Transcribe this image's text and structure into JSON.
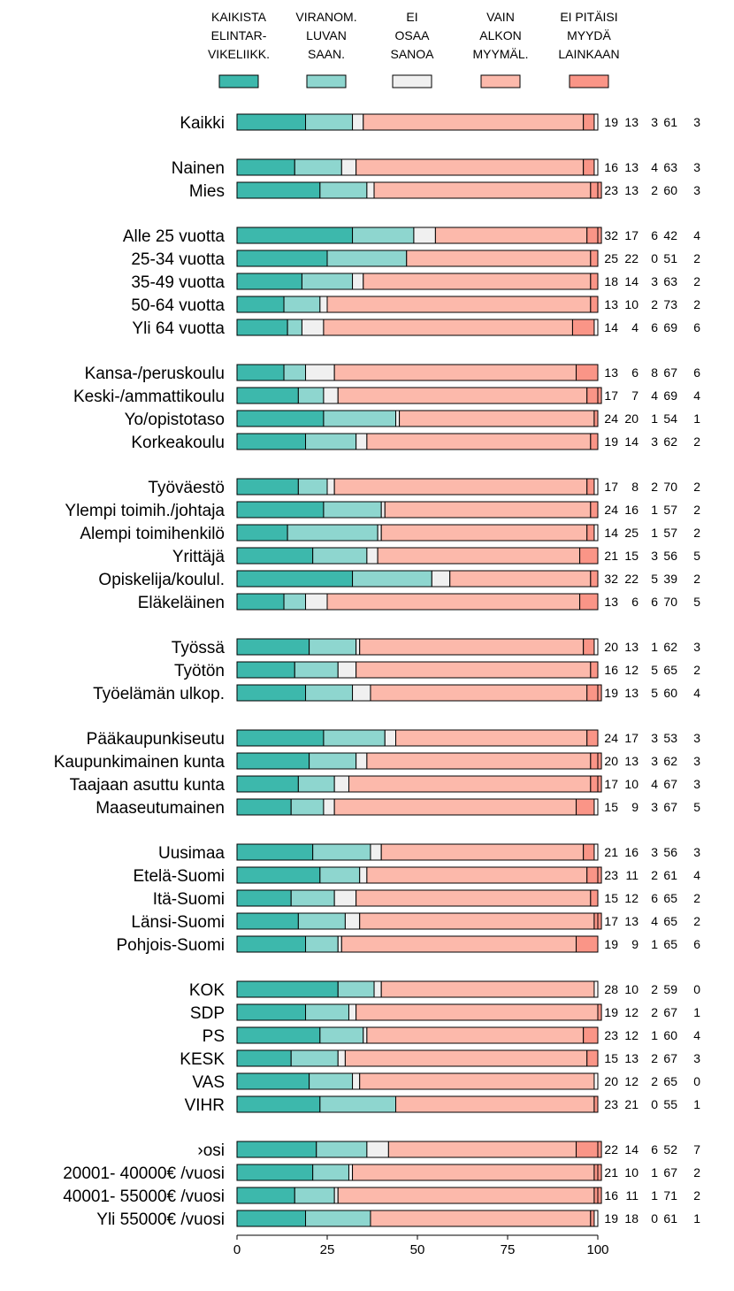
{
  "chart_data": {
    "type": "bar",
    "orientation": "horizontal",
    "stacked": true,
    "xlim": [
      0,
      100
    ],
    "x_ticks": [
      "0",
      "25",
      "50",
      "75",
      "100"
    ],
    "grid": false,
    "legend_position": "top",
    "series": [
      {
        "name_lines": [
          "KAIKISTA",
          "ELINTAR-",
          "VIKELIIKK."
        ],
        "color": "#3db8ac"
      },
      {
        "name_lines": [
          "VIRANOM.",
          "LUVAN",
          "SAAN."
        ],
        "color": "#8ed6cf"
      },
      {
        "name_lines": [
          "EI",
          "OSAA",
          "SANOA"
        ],
        "color": "#f0f0f0"
      },
      {
        "name_lines": [
          "VAIN",
          "ALKON",
          "MYYMÄL."
        ],
        "color": "#fcb9ab"
      },
      {
        "name_lines": [
          "EI PITÄISI",
          "MYYDÄ",
          "LAINKAAN"
        ],
        "color": "#fa9587"
      }
    ],
    "groups": [
      [
        {
          "label": "Kaikki",
          "values": [
            19,
            13,
            3,
            61,
            3
          ]
        }
      ],
      [
        {
          "label": "Nainen",
          "values": [
            16,
            13,
            4,
            63,
            3
          ]
        },
        {
          "label": "Mies",
          "values": [
            23,
            13,
            2,
            60,
            3
          ]
        }
      ],
      [
        {
          "label": "Alle 25 vuotta",
          "values": [
            32,
            17,
            6,
            42,
            4
          ]
        },
        {
          "label": "25-34 vuotta",
          "values": [
            25,
            22,
            0,
            51,
            2
          ]
        },
        {
          "label": "35-49 vuotta",
          "values": [
            18,
            14,
            3,
            63,
            2
          ]
        },
        {
          "label": "50-64 vuotta",
          "values": [
            13,
            10,
            2,
            73,
            2
          ]
        },
        {
          "label": "Yli 64 vuotta",
          "values": [
            14,
            4,
            6,
            69,
            6
          ]
        }
      ],
      [
        {
          "label": "Kansa-/peruskoulu",
          "values": [
            13,
            6,
            8,
            67,
            6
          ]
        },
        {
          "label": "Keski-/ammattikoulu",
          "values": [
            17,
            7,
            4,
            69,
            4
          ]
        },
        {
          "label": "Yo/opistotaso",
          "values": [
            24,
            20,
            1,
            54,
            1
          ]
        },
        {
          "label": "Korkeakoulu",
          "values": [
            19,
            14,
            3,
            62,
            2
          ]
        }
      ],
      [
        {
          "label": "Työväestö",
          "values": [
            17,
            8,
            2,
            70,
            2
          ]
        },
        {
          "label": "Ylempi toimih./johtaja",
          "values": [
            24,
            16,
            1,
            57,
            2
          ]
        },
        {
          "label": "Alempi toimihenkilö",
          "values": [
            14,
            25,
            1,
            57,
            2
          ]
        },
        {
          "label": "Yrittäjä",
          "values": [
            21,
            15,
            3,
            56,
            5
          ]
        },
        {
          "label": "Opiskelija/koulul.",
          "values": [
            32,
            22,
            5,
            39,
            2
          ]
        },
        {
          "label": "Eläkeläinen",
          "values": [
            13,
            6,
            6,
            70,
            5
          ]
        }
      ],
      [
        {
          "label": "Työssä",
          "values": [
            20,
            13,
            1,
            62,
            3
          ]
        },
        {
          "label": "Työtön",
          "values": [
            16,
            12,
            5,
            65,
            2
          ]
        },
        {
          "label": "Työelämän ulkop.",
          "values": [
            19,
            13,
            5,
            60,
            4
          ]
        }
      ],
      [
        {
          "label": "Pääkaupunkiseutu",
          "values": [
            24,
            17,
            3,
            53,
            3
          ]
        },
        {
          "label": "Kaupunkimainen kunta",
          "values": [
            20,
            13,
            3,
            62,
            3
          ]
        },
        {
          "label": "Taajaan asuttu kunta",
          "values": [
            17,
            10,
            4,
            67,
            3
          ]
        },
        {
          "label": "Maaseutumainen",
          "values": [
            15,
            9,
            3,
            67,
            5
          ]
        }
      ],
      [
        {
          "label": "Uusimaa",
          "values": [
            21,
            16,
            3,
            56,
            3
          ]
        },
        {
          "label": "Etelä-Suomi",
          "values": [
            23,
            11,
            2,
            61,
            4
          ]
        },
        {
          "label": "Itä-Suomi",
          "values": [
            15,
            12,
            6,
            65,
            2
          ]
        },
        {
          "label": "Länsi-Suomi",
          "values": [
            17,
            13,
            4,
            65,
            2
          ]
        },
        {
          "label": "Pohjois-Suomi",
          "values": [
            19,
            9,
            1,
            65,
            6
          ]
        }
      ],
      [
        {
          "label": "KOK",
          "values": [
            28,
            10,
            2,
            59,
            0
          ]
        },
        {
          "label": "SDP",
          "values": [
            19,
            12,
            2,
            67,
            1
          ]
        },
        {
          "label": "PS",
          "values": [
            23,
            12,
            1,
            60,
            4
          ]
        },
        {
          "label": "KESK",
          "values": [
            15,
            13,
            2,
            67,
            3
          ]
        },
        {
          "label": "VAS",
          "values": [
            20,
            12,
            2,
            65,
            0
          ]
        },
        {
          "label": "VIHR",
          "values": [
            23,
            21,
            0,
            55,
            1
          ]
        }
      ],
      [
        {
          "label": "›osi",
          "values": [
            22,
            14,
            6,
            52,
            7
          ]
        },
        {
          "label": "20001- 40000€ /vuosi",
          "values": [
            21,
            10,
            1,
            67,
            2
          ]
        },
        {
          "label": "40001- 55000€ /vuosi",
          "values": [
            16,
            11,
            1,
            71,
            2
          ]
        },
        {
          "label": "Yli 55000€ /vuosi",
          "values": [
            19,
            18,
            0,
            61,
            1
          ]
        }
      ]
    ]
  }
}
